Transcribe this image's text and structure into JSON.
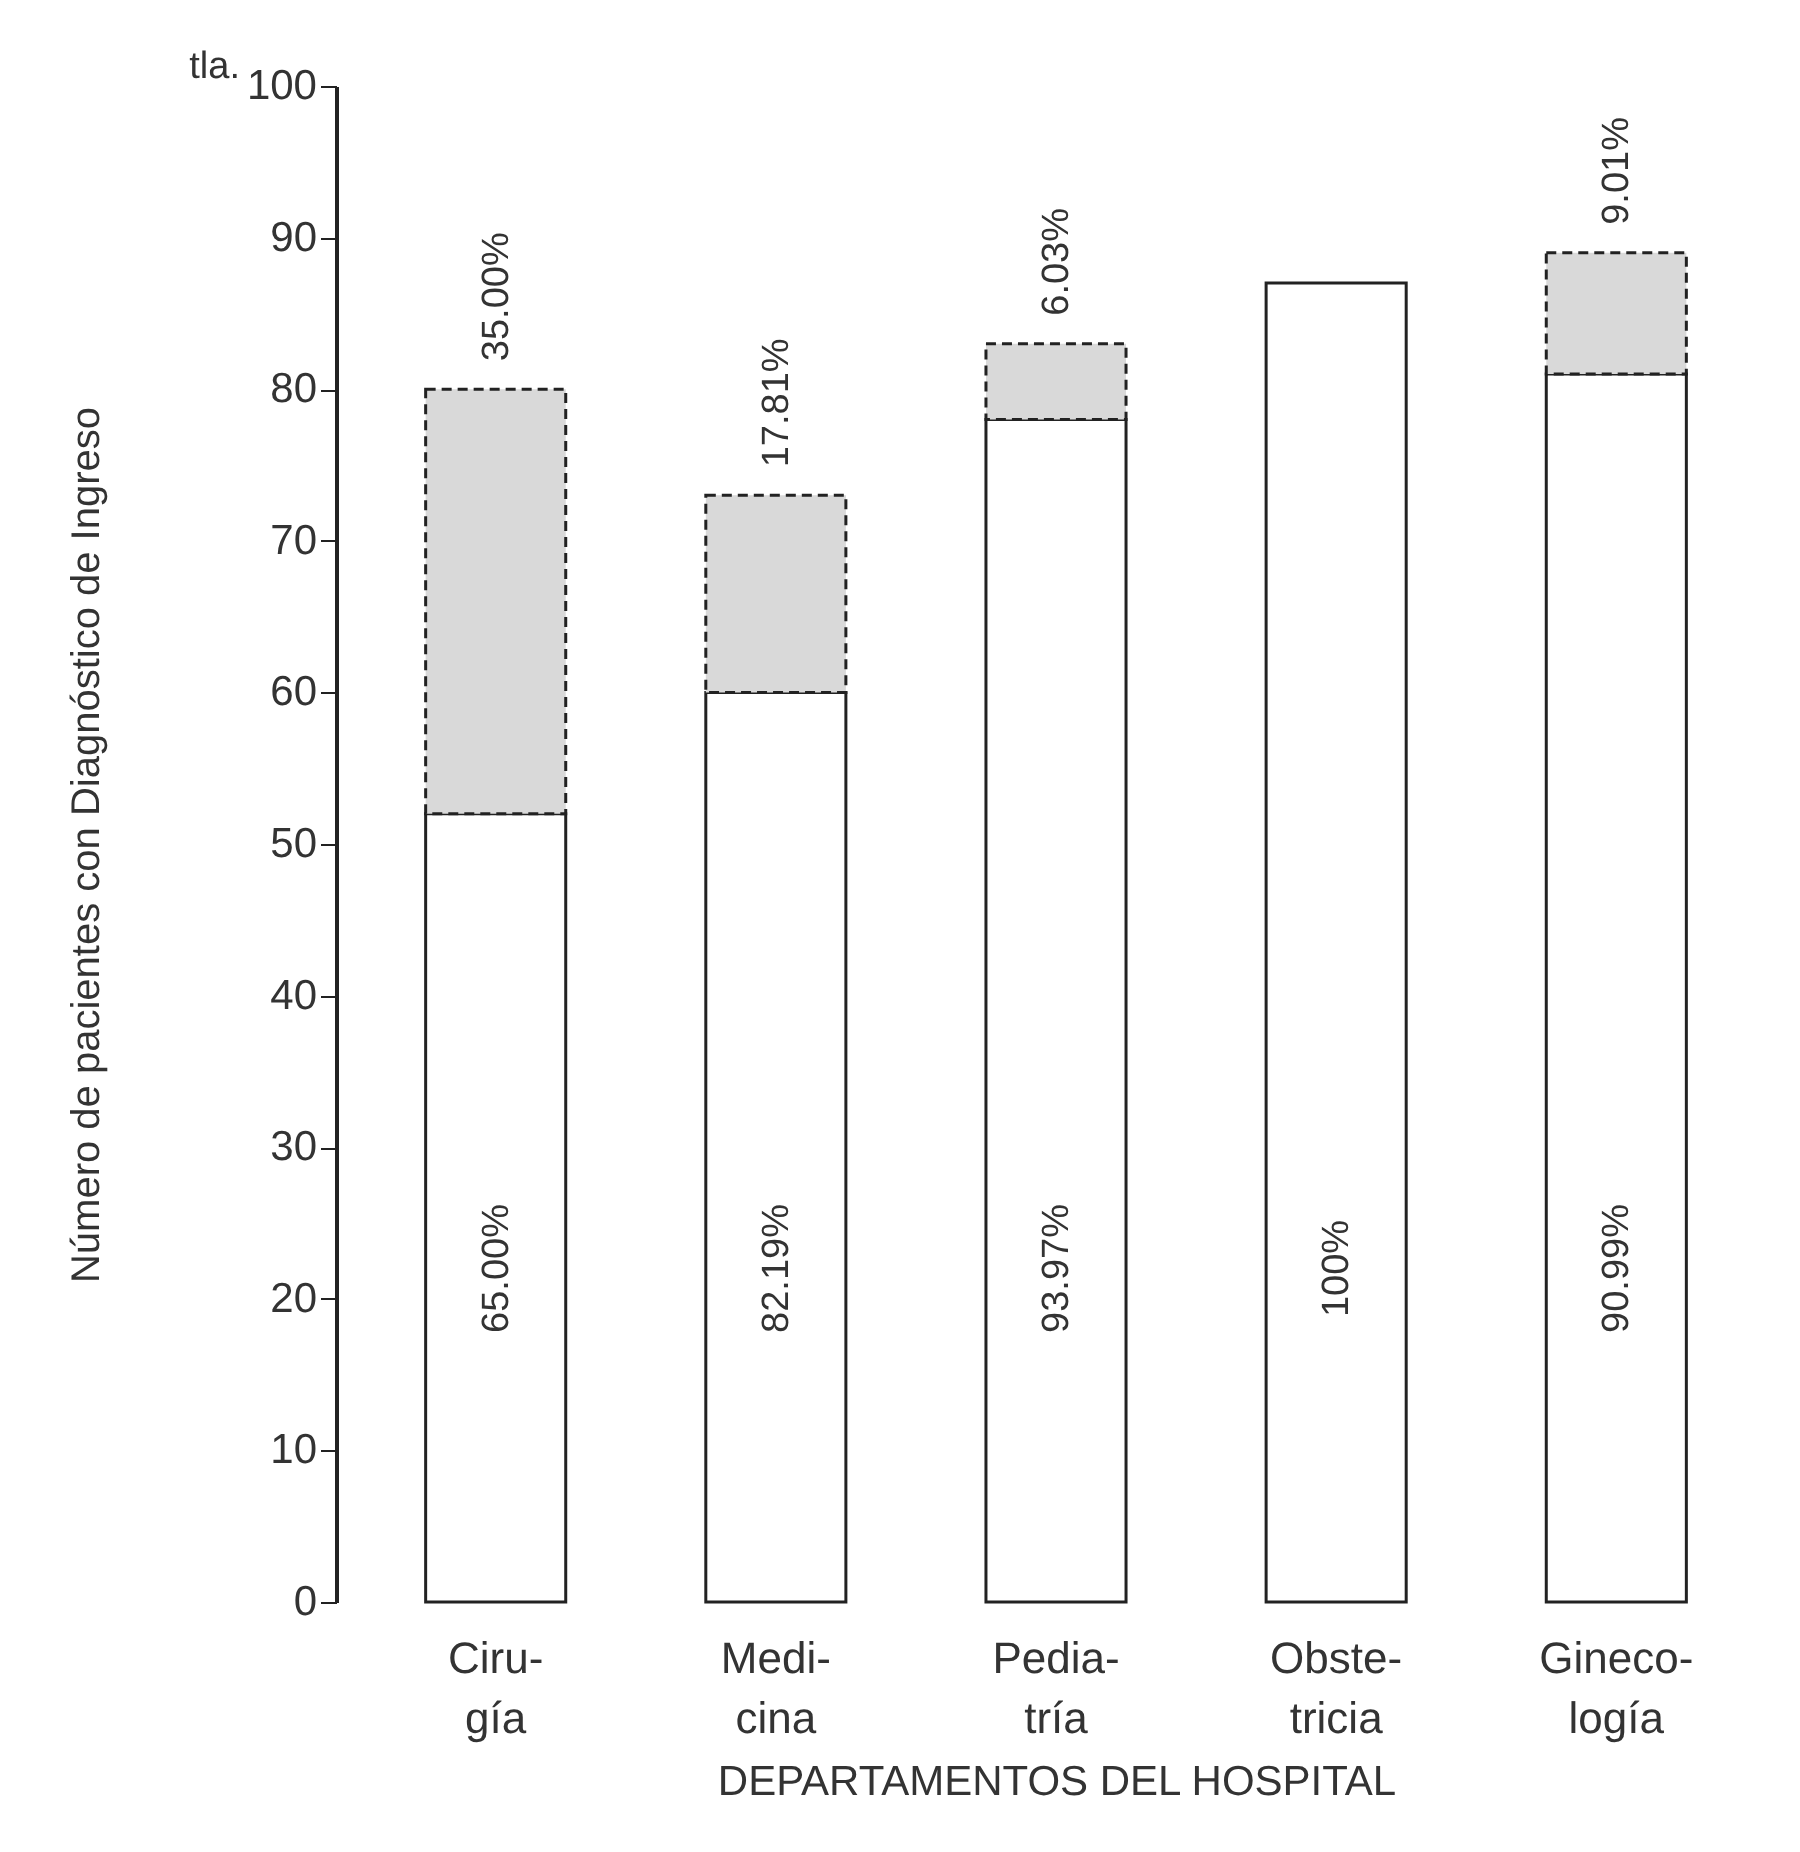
{
  "chart_data": {
    "type": "bar",
    "stacked": true,
    "xlabel": "DEPARTAMENTOS DEL HOSPITAL",
    "ylabel": "Número de pacientes con Diagnóstico de Ingreso",
    "categories": [
      "Ciru-\ngía",
      "Medi-\ncina",
      "Pedia-\ntría",
      "Obste-\ntricia",
      "Gineco-\nlogía"
    ],
    "series": [
      {
        "color": "#ffffff",
        "values": [
          52,
          60,
          78,
          87,
          81
        ]
      },
      {
        "color": "#d9d9d9",
        "line_style": "dashed",
        "values": [
          28,
          13,
          5,
          null,
          8
        ]
      }
    ],
    "ylim": [
      0,
      100
    ],
    "yticks": [
      0,
      10,
      20,
      30,
      40,
      50,
      60,
      70,
      80,
      90,
      100
    ],
    "grid": false,
    "legend": false,
    "annotations": [
      "tla.",
      "65.00%",
      "82.19%",
      "93.97%",
      "100%",
      "90.99%",
      {
        "text": "35.00%",
        "x": "Ciru-\ngía",
        "y": 80
      },
      {
        "text": "17.81%",
        "x": "Medi-\ncina",
        "y": 73
      },
      {
        "text": "6.03%",
        "x": "Pedia-\ntría",
        "y": 83
      },
      {
        "text": "9.01%",
        "x": "Gineco-\nlogía",
        "y": 89
      }
    ]
  }
}
